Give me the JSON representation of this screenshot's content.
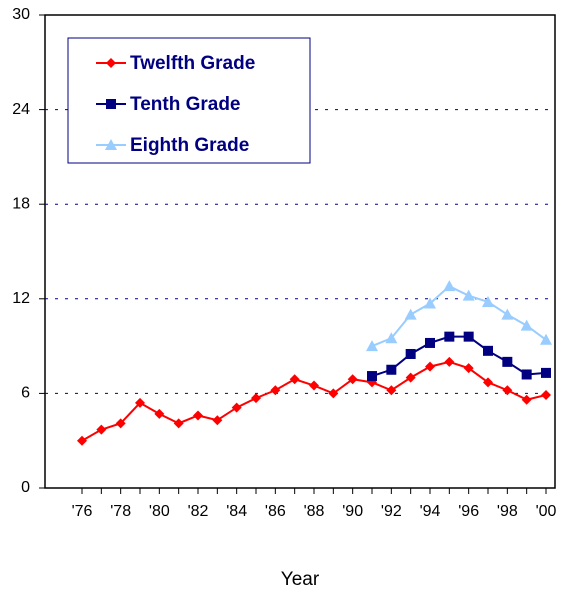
{
  "chart_data": {
    "type": "line",
    "x_label": "Year",
    "categories": [
      "'76",
      null,
      "'78",
      null,
      "'80",
      null,
      "'82",
      null,
      "'84",
      null,
      "'86",
      null,
      "'88",
      null,
      "'90",
      null,
      "'92",
      null,
      "'94",
      null,
      "'96",
      null,
      "'98",
      null,
      "'00"
    ],
    "series": [
      {
        "name": "Twelfth Grade",
        "color": "#ff0000",
        "marker": "diamond",
        "values": [
          3.0,
          3.7,
          4.1,
          5.4,
          4.7,
          4.1,
          4.6,
          4.3,
          5.1,
          5.7,
          6.2,
          6.9,
          6.5,
          6.0,
          6.9,
          6.7,
          6.2,
          7.0,
          7.7,
          8.0,
          7.6,
          6.7,
          6.2,
          5.6,
          5.9
        ]
      },
      {
        "name": "Tenth Grade",
        "color": "#000080",
        "marker": "square",
        "values": [
          null,
          null,
          null,
          null,
          null,
          null,
          null,
          null,
          null,
          null,
          null,
          null,
          null,
          null,
          null,
          7.1,
          7.5,
          8.5,
          9.2,
          9.6,
          9.6,
          8.7,
          8.0,
          7.2,
          7.3
        ]
      },
      {
        "name": "Eighth Grade",
        "color": "#99ccff",
        "marker": "triangle",
        "values": [
          null,
          null,
          null,
          null,
          null,
          null,
          null,
          null,
          null,
          null,
          null,
          null,
          null,
          null,
          null,
          9.0,
          9.5,
          11.0,
          11.7,
          12.8,
          12.2,
          11.8,
          11.0,
          10.3,
          9.4
        ]
      }
    ],
    "ylim": [
      0,
      30
    ],
    "yticks": [
      0,
      6,
      12,
      18,
      24,
      30
    ],
    "grid": true,
    "legend": "upper left"
  }
}
